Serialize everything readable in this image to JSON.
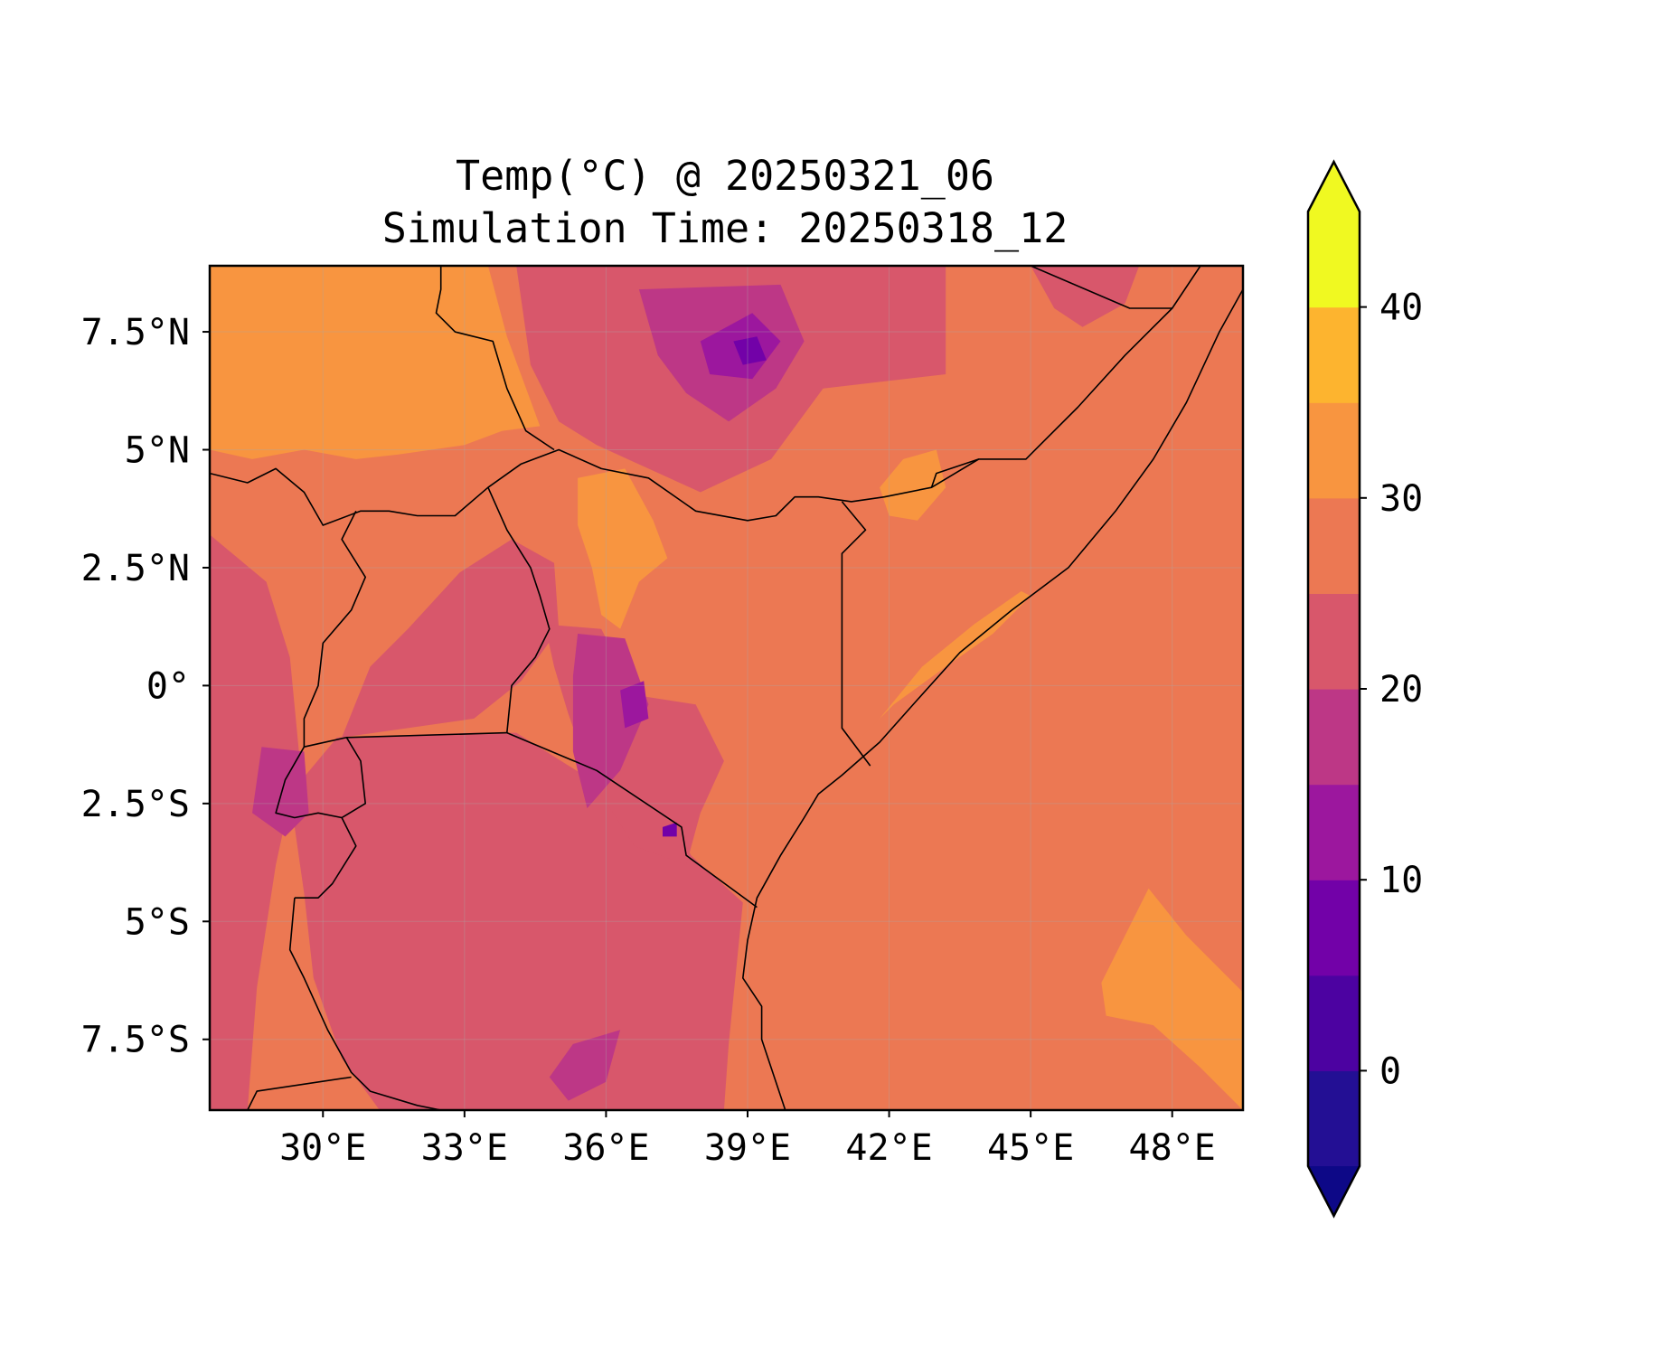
{
  "title": {
    "line1": "Temp(°C) @ 20250321_06",
    "line2": "Simulation Time: 20250318_12"
  },
  "chart_data": {
    "type": "heatmap",
    "variable": "Temp",
    "units": "°C",
    "valid_time": "20250321_06",
    "simulation_time": "20250318_12",
    "xlim": [
      27.6,
      49.5
    ],
    "ylim": [
      -9.0,
      8.9
    ],
    "x_ticks": [
      {
        "value": 30,
        "label": "30°E"
      },
      {
        "value": 33,
        "label": "33°E"
      },
      {
        "value": 36,
        "label": "36°E"
      },
      {
        "value": 39,
        "label": "39°E"
      },
      {
        "value": 42,
        "label": "42°E"
      },
      {
        "value": 45,
        "label": "45°E"
      },
      {
        "value": 48,
        "label": "48°E"
      }
    ],
    "y_ticks": [
      {
        "value": 7.5,
        "label": "7.5°N"
      },
      {
        "value": 5,
        "label": "5°N"
      },
      {
        "value": 2.5,
        "label": "2.5°N"
      },
      {
        "value": 0,
        "label": "0°"
      },
      {
        "value": -2.5,
        "label": "2.5°S"
      },
      {
        "value": -5,
        "label": "5°S"
      },
      {
        "value": -7.5,
        "label": "7.5°S"
      }
    ],
    "grid": true,
    "colorbar": {
      "levels": [
        -5,
        0,
        5,
        10,
        15,
        20,
        25,
        30,
        35,
        40,
        45
      ],
      "colors": [
        "#230f94",
        "#4c02a1",
        "#7201a8",
        "#9c179e",
        "#bd3786",
        "#d8576b",
        "#ec7853",
        "#f89540",
        "#fdb42f",
        "#f0f921"
      ],
      "under_color": "#0d0887",
      "over_color": "#f0f921",
      "extend": "both",
      "ticks": [
        {
          "value": 0,
          "label": "0"
        },
        {
          "value": 10,
          "label": "10"
        },
        {
          "value": 20,
          "label": "20"
        },
        {
          "value": 30,
          "label": "30"
        },
        {
          "value": 40,
          "label": "40"
        }
      ]
    },
    "background_color": "#ec7853",
    "regions": [
      {
        "temp_band": "30-35",
        "color": "#f89540",
        "points": [
          [
            27.6,
            8.9
          ],
          [
            33.5,
            8.9
          ],
          [
            33.9,
            7.4
          ],
          [
            34.6,
            5.5
          ],
          [
            33.8,
            5.4
          ],
          [
            33.0,
            5.1
          ],
          [
            31.6,
            4.9
          ],
          [
            30.7,
            4.8
          ],
          [
            29.6,
            5.0
          ],
          [
            28.5,
            4.8
          ],
          [
            27.6,
            5.0
          ]
        ]
      },
      {
        "temp_band": "30-35",
        "color": "#f89540",
        "points": [
          [
            35.4,
            4.4
          ],
          [
            36.4,
            4.6
          ],
          [
            37.0,
            3.5
          ],
          [
            37.3,
            2.7
          ],
          [
            36.7,
            2.2
          ],
          [
            36.3,
            1.2
          ],
          [
            35.9,
            1.5
          ],
          [
            35.7,
            2.5
          ],
          [
            35.4,
            3.4
          ]
        ]
      },
      {
        "temp_band": "30-35",
        "color": "#f89540",
        "points": [
          [
            41.1,
            -1.4
          ],
          [
            41.8,
            -0.7
          ],
          [
            42.7,
            0.4
          ],
          [
            43.8,
            1.3
          ],
          [
            44.8,
            2.0
          ],
          [
            45.0,
            1.9
          ],
          [
            44.2,
            1.1
          ],
          [
            43.2,
            0.4
          ],
          [
            42.1,
            -0.4
          ],
          [
            41.4,
            -1.1
          ]
        ]
      },
      {
        "temp_band": "30-35",
        "color": "#f89540",
        "points": [
          [
            42.3,
            4.8
          ],
          [
            43.0,
            5.0
          ],
          [
            43.2,
            4.2
          ],
          [
            42.6,
            3.5
          ],
          [
            42.0,
            3.6
          ],
          [
            41.8,
            4.2
          ]
        ]
      },
      {
        "temp_band": "30-35",
        "color": "#f89540",
        "points": [
          [
            46.5,
            -6.3
          ],
          [
            47.5,
            -4.3
          ],
          [
            48.3,
            -5.3
          ],
          [
            49.5,
            -6.5
          ],
          [
            49.5,
            -9.0
          ],
          [
            48.6,
            -8.1
          ],
          [
            47.6,
            -7.2
          ],
          [
            46.6,
            -7.0
          ]
        ]
      },
      {
        "temp_band": "20-25",
        "color": "#d8576b",
        "points": [
          [
            33.2,
            -1.0
          ],
          [
            34.1,
            -1.0
          ],
          [
            37.6,
            -3.2
          ],
          [
            37.8,
            -3.6
          ],
          [
            38.9,
            -4.6
          ],
          [
            38.6,
            -7.6
          ],
          [
            38.5,
            -9.0
          ],
          [
            31.2,
            -9.0
          ],
          [
            30.4,
            -7.9
          ],
          [
            29.8,
            -6.2
          ],
          [
            29.6,
            -4.4
          ],
          [
            29.3,
            -2.3
          ],
          [
            30.3,
            -1.1
          ]
        ]
      },
      {
        "temp_band": "20-25",
        "color": "#d8576b",
        "points": [
          [
            30.4,
            -1.1
          ],
          [
            31.0,
            0.4
          ],
          [
            31.8,
            1.2
          ],
          [
            32.9,
            2.4
          ],
          [
            34.0,
            3.1
          ],
          [
            34.9,
            2.6
          ],
          [
            35.0,
            1.2
          ],
          [
            34.2,
            0.1
          ],
          [
            33.2,
            -0.7
          ]
        ]
      },
      {
        "temp_band": "20-25",
        "color": "#d8576b",
        "points": [
          [
            34.7,
            1.3
          ],
          [
            35.9,
            1.2
          ],
          [
            36.6,
            -0.2
          ],
          [
            37.9,
            -0.4
          ],
          [
            38.5,
            -1.6
          ],
          [
            38.0,
            -2.7
          ],
          [
            37.7,
            -3.8
          ],
          [
            36.6,
            -3.4
          ],
          [
            35.7,
            -2.0
          ],
          [
            35.2,
            -0.6
          ],
          [
            34.9,
            0.4
          ]
        ]
      },
      {
        "temp_band": "20-25",
        "color": "#d8576b",
        "points": [
          [
            34.1,
            8.9
          ],
          [
            43.2,
            8.9
          ],
          [
            43.2,
            6.6
          ],
          [
            40.6,
            6.3
          ],
          [
            39.5,
            4.8
          ],
          [
            38.0,
            4.1
          ],
          [
            36.9,
            4.6
          ],
          [
            35.8,
            5.1
          ],
          [
            35.0,
            5.6
          ],
          [
            34.4,
            6.8
          ]
        ]
      },
      {
        "temp_band": "20-25",
        "color": "#d8576b",
        "points": [
          [
            27.6,
            3.2
          ],
          [
            28.8,
            2.2
          ],
          [
            29.3,
            0.6
          ],
          [
            29.5,
            -1.5
          ],
          [
            29.0,
            -3.8
          ],
          [
            28.6,
            -6.4
          ],
          [
            28.4,
            -9.0
          ],
          [
            27.6,
            -9.0
          ]
        ]
      },
      {
        "temp_band": "20-25",
        "color": "#d8576b",
        "points": [
          [
            45.0,
            8.9
          ],
          [
            47.3,
            8.9
          ],
          [
            47.0,
            8.1
          ],
          [
            46.1,
            7.6
          ],
          [
            45.5,
            8.0
          ]
        ]
      },
      {
        "temp_band": "15-20",
        "color": "#bd3786",
        "points": [
          [
            36.7,
            8.4
          ],
          [
            39.7,
            8.5
          ],
          [
            40.2,
            7.3
          ],
          [
            39.6,
            6.3
          ],
          [
            38.6,
            5.6
          ],
          [
            37.7,
            6.2
          ],
          [
            37.1,
            7.0
          ]
        ]
      },
      {
        "temp_band": "15-20",
        "color": "#bd3786",
        "points": [
          [
            35.4,
            1.1
          ],
          [
            36.4,
            1.0
          ],
          [
            36.9,
            -0.4
          ],
          [
            36.3,
            -1.8
          ],
          [
            35.6,
            -2.6
          ],
          [
            35.3,
            -1.4
          ],
          [
            35.3,
            0.2
          ]
        ]
      },
      {
        "temp_band": "15-20",
        "color": "#bd3786",
        "points": [
          [
            28.7,
            -1.3
          ],
          [
            29.6,
            -1.4
          ],
          [
            29.7,
            -2.7
          ],
          [
            29.2,
            -3.2
          ],
          [
            28.5,
            -2.7
          ]
        ]
      },
      {
        "temp_band": "15-20",
        "color": "#bd3786",
        "points": [
          [
            35.3,
            -7.6
          ],
          [
            36.3,
            -7.3
          ],
          [
            36.0,
            -8.4
          ],
          [
            35.2,
            -8.8
          ],
          [
            34.8,
            -8.3
          ]
        ]
      },
      {
        "temp_band": "10-15",
        "color": "#9c179e",
        "points": [
          [
            38.0,
            7.3
          ],
          [
            39.1,
            7.9
          ],
          [
            39.7,
            7.3
          ],
          [
            39.1,
            6.5
          ],
          [
            38.2,
            6.6
          ]
        ]
      },
      {
        "temp_band": "10-15",
        "color": "#9c179e",
        "points": [
          [
            36.3,
            -0.1
          ],
          [
            36.8,
            0.1
          ],
          [
            36.9,
            -0.7
          ],
          [
            36.4,
            -0.9
          ]
        ]
      },
      {
        "temp_band": "5-10",
        "color": "#7201a8",
        "points": [
          [
            38.7,
            7.3
          ],
          [
            39.2,
            7.4
          ],
          [
            39.4,
            6.9
          ],
          [
            38.9,
            6.8
          ]
        ]
      },
      {
        "temp_band": "5-10",
        "color": "#7201a8",
        "points": [
          [
            37.2,
            -3.0
          ],
          [
            37.5,
            -2.9
          ],
          [
            37.5,
            -3.2
          ],
          [
            37.2,
            -3.2
          ]
        ]
      }
    ],
    "features": {
      "coastline": [
        [
          49.5,
          8.4
        ],
        [
          49.0,
          7.5
        ],
        [
          48.3,
          6.0
        ],
        [
          47.6,
          4.8
        ],
        [
          46.8,
          3.7
        ],
        [
          45.8,
          2.5
        ],
        [
          44.6,
          1.6
        ],
        [
          43.5,
          0.7
        ],
        [
          42.6,
          -0.3
        ],
        [
          41.8,
          -1.2
        ],
        [
          41.0,
          -1.9
        ],
        [
          40.5,
          -2.3
        ],
        [
          40.2,
          -2.8
        ],
        [
          39.7,
          -3.6
        ],
        [
          39.2,
          -4.5
        ],
        [
          39.0,
          -5.4
        ],
        [
          38.9,
          -6.2
        ],
        [
          39.3,
          -6.8
        ],
        [
          39.3,
          -7.5
        ],
        [
          39.6,
          -8.4
        ],
        [
          39.8,
          -9.0
        ]
      ],
      "borders": [
        [
          [
            27.6,
            4.5
          ],
          [
            28.4,
            4.3
          ],
          [
            29.0,
            4.6
          ],
          [
            29.6,
            4.1
          ],
          [
            30.0,
            3.4
          ],
          [
            30.8,
            3.7
          ],
          [
            31.4,
            3.7
          ],
          [
            32.0,
            3.6
          ],
          [
            32.8,
            3.6
          ],
          [
            33.5,
            4.2
          ],
          [
            34.2,
            4.7
          ],
          [
            35.0,
            5.0
          ],
          [
            35.9,
            4.6
          ],
          [
            36.9,
            4.4
          ],
          [
            37.9,
            3.7
          ],
          [
            39.0,
            3.5
          ],
          [
            39.6,
            3.6
          ],
          [
            40.0,
            4.0
          ],
          [
            40.5,
            4.0
          ],
          [
            41.2,
            3.9
          ],
          [
            41.9,
            4.0
          ],
          [
            42.9,
            4.2
          ],
          [
            43.9,
            4.8
          ],
          [
            44.9,
            4.8
          ],
          [
            46.0,
            5.9
          ],
          [
            47.0,
            7.0
          ],
          [
            48.0,
            8.0
          ],
          [
            48.6,
            8.9
          ]
        ],
        [
          [
            33.5,
            4.2
          ],
          [
            33.9,
            3.3
          ],
          [
            34.4,
            2.5
          ],
          [
            34.6,
            1.9
          ],
          [
            34.8,
            1.2
          ],
          [
            34.5,
            0.6
          ],
          [
            34.0,
            0.0
          ],
          [
            33.9,
            -1.0
          ]
        ],
        [
          [
            33.9,
            -1.0
          ],
          [
            35.8,
            -1.8
          ],
          [
            37.6,
            -3.0
          ],
          [
            37.7,
            -3.6
          ],
          [
            39.2,
            -4.7
          ]
        ],
        [
          [
            30.5,
            -1.1
          ],
          [
            33.9,
            -1.0
          ]
        ],
        [
          [
            29.6,
            -1.3
          ],
          [
            30.5,
            -1.1
          ],
          [
            30.8,
            -1.6
          ],
          [
            30.9,
            -2.5
          ],
          [
            30.4,
            -2.8
          ],
          [
            30.7,
            -3.4
          ],
          [
            30.2,
            -4.2
          ],
          [
            29.9,
            -4.5
          ],
          [
            29.4,
            -4.5
          ]
        ],
        [
          [
            29.6,
            -1.3
          ],
          [
            29.2,
            -2.0
          ],
          [
            29.0,
            -2.7
          ],
          [
            29.4,
            -2.8
          ],
          [
            29.9,
            -2.7
          ],
          [
            30.4,
            -2.8
          ]
        ],
        [
          [
            30.7,
            3.7
          ],
          [
            30.4,
            3.1
          ],
          [
            30.9,
            2.3
          ],
          [
            30.6,
            1.6
          ],
          [
            30.0,
            0.9
          ],
          [
            29.9,
            0.0
          ],
          [
            29.6,
            -0.7
          ],
          [
            29.6,
            -1.3
          ]
        ],
        [
          [
            29.4,
            -4.5
          ],
          [
            29.3,
            -5.6
          ],
          [
            29.6,
            -6.2
          ],
          [
            30.1,
            -7.3
          ],
          [
            30.6,
            -8.2
          ],
          [
            31.0,
            -8.6
          ],
          [
            32.0,
            -8.9
          ],
          [
            32.5,
            -9.0
          ]
        ],
        [
          [
            28.4,
            -9.0
          ],
          [
            28.6,
            -8.6
          ],
          [
            30.6,
            -8.3
          ]
        ],
        [
          [
            41.0,
            3.9
          ],
          [
            41.5,
            3.3
          ],
          [
            41.0,
            2.8
          ],
          [
            41.0,
            -0.9
          ],
          [
            41.6,
            -1.7
          ]
        ],
        [
          [
            42.9,
            4.2
          ],
          [
            43.0,
            4.5
          ],
          [
            43.9,
            4.8
          ]
        ],
        [
          [
            45.0,
            8.9
          ],
          [
            47.1,
            8.0
          ],
          [
            48.0,
            8.0
          ]
        ],
        [
          [
            32.5,
            8.9
          ],
          [
            32.5,
            8.4
          ],
          [
            32.4,
            7.9
          ],
          [
            32.8,
            7.5
          ],
          [
            33.6,
            7.3
          ],
          [
            33.9,
            6.3
          ],
          [
            34.3,
            5.4
          ],
          [
            34.9,
            5.0
          ]
        ]
      ]
    }
  }
}
